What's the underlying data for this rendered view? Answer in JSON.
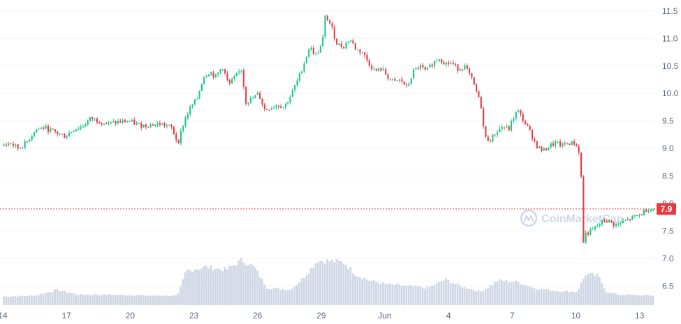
{
  "chart_data": {
    "type": "candlestick",
    "y_ticks": [
      "11.5",
      "11.0",
      "10.5",
      "10.0",
      "9.5",
      "9.0",
      "8.5",
      "8.0",
      "7.5",
      "7.0",
      "6.5"
    ],
    "ylim": [
      6.15,
      11.6
    ],
    "x_ticks": [
      "14",
      "17",
      "20",
      "23",
      "26",
      "29",
      "Jun",
      "4",
      "7",
      "10",
      "13"
    ],
    "x_tick_index": [
      0,
      3,
      6,
      9,
      12,
      15,
      18,
      21,
      24,
      27,
      30
    ],
    "x_range": [
      0,
      30.7
    ],
    "current_price": 7.9,
    "current_price_label": "7.9",
    "watermark": "CoinMarketCap",
    "colors": {
      "up": "#16c784",
      "down": "#ea3943",
      "volume": "#cfd6e4",
      "price_line": "#ea3943"
    },
    "price_path": [
      [
        0.0,
        9.05
      ],
      [
        0.4,
        9.1
      ],
      [
        0.8,
        9.0
      ],
      [
        1.2,
        9.12
      ],
      [
        1.6,
        9.35
      ],
      [
        2.0,
        9.38
      ],
      [
        2.5,
        9.3
      ],
      [
        3.0,
        9.22
      ],
      [
        3.4,
        9.35
      ],
      [
        3.8,
        9.4
      ],
      [
        4.2,
        9.55
      ],
      [
        4.6,
        9.5
      ],
      [
        5.0,
        9.45
      ],
      [
        5.5,
        9.48
      ],
      [
        6.0,
        9.5
      ],
      [
        6.5,
        9.42
      ],
      [
        7.0,
        9.43
      ],
      [
        7.5,
        9.45
      ],
      [
        8.0,
        9.38
      ],
      [
        8.3,
        9.1
      ],
      [
        8.6,
        9.5
      ],
      [
        8.9,
        9.75
      ],
      [
        9.2,
        9.9
      ],
      [
        9.5,
        10.3
      ],
      [
        9.8,
        10.4
      ],
      [
        10.1,
        10.3
      ],
      [
        10.4,
        10.5
      ],
      [
        10.7,
        10.15
      ],
      [
        11.0,
        10.3
      ],
      [
        11.3,
        10.45
      ],
      [
        11.5,
        9.85
      ],
      [
        11.8,
        9.9
      ],
      [
        12.1,
        10.0
      ],
      [
        12.4,
        9.7
      ],
      [
        12.7,
        9.75
      ],
      [
        13.0,
        9.8
      ],
      [
        13.3,
        9.75
      ],
      [
        13.6,
        9.95
      ],
      [
        13.9,
        10.2
      ],
      [
        14.2,
        10.5
      ],
      [
        14.5,
        10.85
      ],
      [
        14.8,
        10.7
      ],
      [
        15.1,
        10.9
      ],
      [
        15.25,
        11.42
      ],
      [
        15.5,
        11.25
      ],
      [
        15.8,
        10.9
      ],
      [
        16.1,
        10.85
      ],
      [
        16.4,
        11.0
      ],
      [
        16.7,
        10.8
      ],
      [
        17.0,
        10.75
      ],
      [
        17.3,
        10.55
      ],
      [
        17.6,
        10.4
      ],
      [
        17.9,
        10.45
      ],
      [
        18.2,
        10.3
      ],
      [
        18.5,
        10.2
      ],
      [
        18.8,
        10.25
      ],
      [
        19.1,
        10.1
      ],
      [
        19.4,
        10.4
      ],
      [
        19.7,
        10.5
      ],
      [
        20.0,
        10.4
      ],
      [
        20.3,
        10.55
      ],
      [
        20.6,
        10.65
      ],
      [
        20.9,
        10.55
      ],
      [
        21.2,
        10.55
      ],
      [
        21.5,
        10.45
      ],
      [
        21.8,
        10.5
      ],
      [
        22.1,
        10.3
      ],
      [
        22.4,
        10.0
      ],
      [
        22.6,
        9.75
      ],
      [
        22.75,
        9.2
      ],
      [
        23.0,
        9.15
      ],
      [
        23.3,
        9.3
      ],
      [
        23.6,
        9.4
      ],
      [
        23.9,
        9.35
      ],
      [
        24.1,
        9.55
      ],
      [
        24.3,
        9.7
      ],
      [
        24.6,
        9.5
      ],
      [
        24.9,
        9.3
      ],
      [
        25.2,
        9.05
      ],
      [
        25.5,
        8.95
      ],
      [
        25.8,
        9.05
      ],
      [
        26.1,
        9.1
      ],
      [
        26.4,
        9.05
      ],
      [
        26.7,
        9.1
      ],
      [
        27.0,
        9.1
      ],
      [
        27.2,
        8.95
      ],
      [
        27.3,
        8.5
      ],
      [
        27.35,
        7.2
      ],
      [
        27.5,
        7.45
      ],
      [
        27.8,
        7.5
      ],
      [
        28.1,
        7.6
      ],
      [
        28.4,
        7.7
      ],
      [
        28.7,
        7.65
      ],
      [
        29.0,
        7.6
      ],
      [
        29.2,
        7.65
      ],
      [
        29.5,
        7.7
      ],
      [
        29.8,
        7.75
      ],
      [
        30.1,
        7.8
      ],
      [
        30.4,
        7.9
      ],
      [
        30.6,
        7.9
      ]
    ],
    "volume_path": [
      [
        0.0,
        0.45
      ],
      [
        1.5,
        0.5
      ],
      [
        2.5,
        0.8
      ],
      [
        3.5,
        0.55
      ],
      [
        5.0,
        0.55
      ],
      [
        7.0,
        0.5
      ],
      [
        8.2,
        0.5
      ],
      [
        8.6,
        1.8
      ],
      [
        9.5,
        2.0
      ],
      [
        10.5,
        1.85
      ],
      [
        11.2,
        2.35
      ],
      [
        11.8,
        2.0
      ],
      [
        12.4,
        0.9
      ],
      [
        13.5,
        0.8
      ],
      [
        14.0,
        1.3
      ],
      [
        14.8,
        2.35
      ],
      [
        15.3,
        2.3
      ],
      [
        16.0,
        2.25
      ],
      [
        16.6,
        1.6
      ],
      [
        17.2,
        1.3
      ],
      [
        18.0,
        1.1
      ],
      [
        19.0,
        1.0
      ],
      [
        20.0,
        0.9
      ],
      [
        20.8,
        1.35
      ],
      [
        21.5,
        1.0
      ],
      [
        22.5,
        0.7
      ],
      [
        23.3,
        1.3
      ],
      [
        24.2,
        1.2
      ],
      [
        25.0,
        0.9
      ],
      [
        26.0,
        0.75
      ],
      [
        27.0,
        0.7
      ],
      [
        27.4,
        1.6
      ],
      [
        28.0,
        1.55
      ],
      [
        28.4,
        0.7
      ],
      [
        29.0,
        0.55
      ],
      [
        30.6,
        0.5
      ]
    ],
    "volume_max": 2.4
  }
}
